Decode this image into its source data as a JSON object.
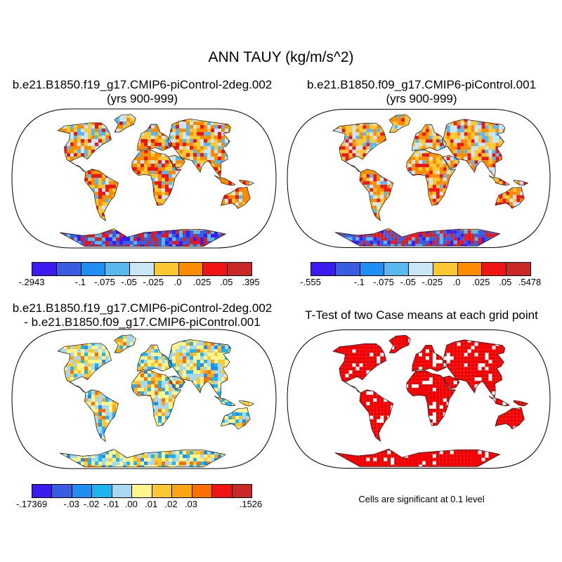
{
  "title": "ANN TAUY (kg/m/s^2)",
  "panels": [
    {
      "title_line1": "b.e21.B1850.f19_g17.CMIP6-piControl-2deg.002",
      "title_line2": "(yrs 900-999)",
      "type": "field",
      "palette": [
        "#3a1cf0",
        "#3a5ce0",
        "#1e8ef0",
        "#5ab8ee",
        "#c8e6f6",
        "#fcc832",
        "#fb8c00",
        "#f01414",
        "#c82828"
      ],
      "tick_labels": [
        "-.2943",
        "-.1",
        "-.075",
        "-.05",
        "-.025",
        ".0",
        ".025",
        ".05",
        ".395"
      ],
      "tick_slots": [
        0,
        2,
        3,
        4,
        5,
        6,
        7,
        8,
        9
      ]
    },
    {
      "title_line1": "b.e21.B1850.f09_g17.CMIP6-piControl.001",
      "title_line2": "(yrs 900-999)",
      "type": "field",
      "palette": [
        "#3a1cf0",
        "#3a5ce0",
        "#1e8ef0",
        "#5ab8ee",
        "#c8e6f6",
        "#fcc832",
        "#fb8c00",
        "#f01414",
        "#c82828"
      ],
      "tick_labels": [
        "-.555",
        "-.1",
        "-.075",
        "-.05",
        "-.025",
        ".0",
        ".025",
        ".05",
        ".5478"
      ],
      "tick_slots": [
        0,
        2,
        3,
        4,
        5,
        6,
        7,
        8,
        9
      ]
    },
    {
      "title_line1": "b.e21.B1850.f19_g17.CMIP6-piControl-2deg.002",
      "title_line2": "- b.e21.B1850.f09_g17.CMIP6-piControl.001",
      "type": "diff",
      "palette": [
        "#3a1cf0",
        "#3a5ce0",
        "#1e8ef0",
        "#1eb4f0",
        "#a8d8f0",
        "#fff58c",
        "#fcc832",
        "#fba514",
        "#fb6e00",
        "#f01414",
        "#c82828"
      ],
      "tick_labels": [
        "-.17369",
        "-.03",
        "-.02",
        "-.01",
        ".00",
        ".01",
        ".02",
        ".03",
        ".1526"
      ],
      "tick_slots": [
        0,
        2,
        3,
        4,
        5,
        6,
        7,
        8,
        11
      ]
    },
    {
      "title_line1": "T-Test of two Case means at each grid point",
      "type": "ttest",
      "note": "Cells are significant at 0.1 level"
    }
  ]
}
